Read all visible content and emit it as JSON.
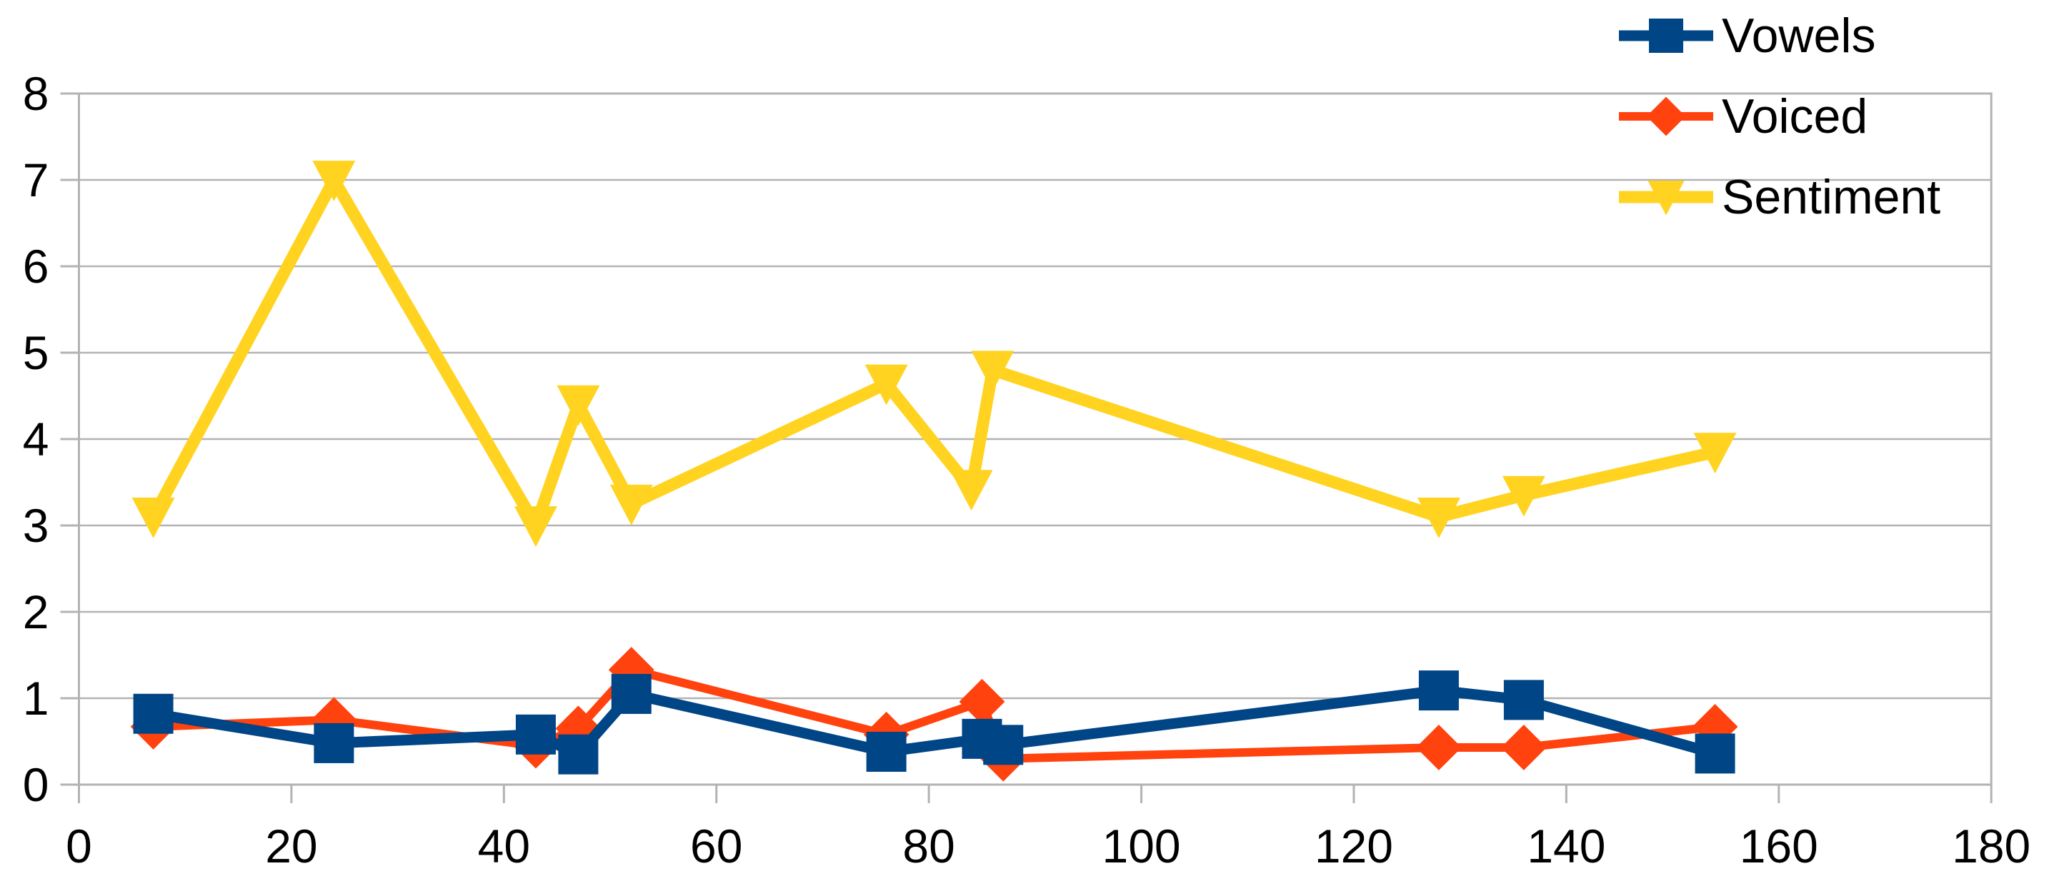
{
  "chart_data": {
    "type": "line",
    "title": "",
    "xlabel": "",
    "ylabel": "",
    "xlim": [
      0,
      180
    ],
    "ylim": [
      0,
      8
    ],
    "x_ticks": [
      0,
      20,
      40,
      60,
      80,
      100,
      120,
      140,
      160,
      180
    ],
    "x_tick_labels": [
      "0",
      "20",
      "40",
      "60",
      "80",
      "100",
      "120",
      "140",
      "160",
      "180"
    ],
    "y_ticks": [
      0,
      1,
      2,
      3,
      4,
      5,
      6,
      7,
      8
    ],
    "y_tick_labels": [
      "0",
      "1",
      "2",
      "3",
      "4",
      "5",
      "6",
      "7",
      "8"
    ],
    "grid": "horizontal-only",
    "legend_position": "top-right-outside-overlapping",
    "colors": {
      "grid": "#b3b3b3",
      "border": "#b3b3b3",
      "text": "#000000",
      "background": "#ffffff"
    },
    "series": [
      {
        "name": "Vowels",
        "color": "#004586",
        "marker": "square",
        "points": [
          [
            7,
            0.82
          ],
          [
            24,
            0.48
          ],
          [
            43,
            0.58
          ],
          [
            47,
            0.35
          ],
          [
            52,
            1.05
          ],
          [
            76,
            0.38
          ],
          [
            85,
            0.53
          ],
          [
            87,
            0.46
          ],
          [
            128,
            1.09
          ],
          [
            136,
            0.98
          ],
          [
            154,
            0.36
          ]
        ]
      },
      {
        "name": "Voiced",
        "color": "#FF420E",
        "marker": "diamond",
        "points": [
          [
            7,
            0.67
          ],
          [
            24,
            0.75
          ],
          [
            43,
            0.45
          ],
          [
            47,
            0.65
          ],
          [
            52,
            1.33
          ],
          [
            76,
            0.58
          ],
          [
            85,
            0.96
          ],
          [
            87,
            0.3
          ],
          [
            128,
            0.43
          ],
          [
            136,
            0.43
          ],
          [
            154,
            0.67
          ]
        ]
      },
      {
        "name": "Sentiment",
        "color": "#FFD320",
        "marker": "triangle-down",
        "points": [
          [
            7,
            3.1
          ],
          [
            24,
            7.0
          ],
          [
            43,
            3.0
          ],
          [
            47,
            4.4
          ],
          [
            52,
            3.25
          ],
          [
            76,
            4.64
          ],
          [
            84,
            3.42
          ],
          [
            86,
            4.8
          ],
          [
            128,
            3.1
          ],
          [
            136,
            3.35
          ],
          [
            154,
            3.85
          ]
        ]
      }
    ]
  },
  "legend": {
    "items": [
      {
        "label": "Vowels"
      },
      {
        "label": "Voiced"
      },
      {
        "label": "Sentiment"
      }
    ]
  }
}
